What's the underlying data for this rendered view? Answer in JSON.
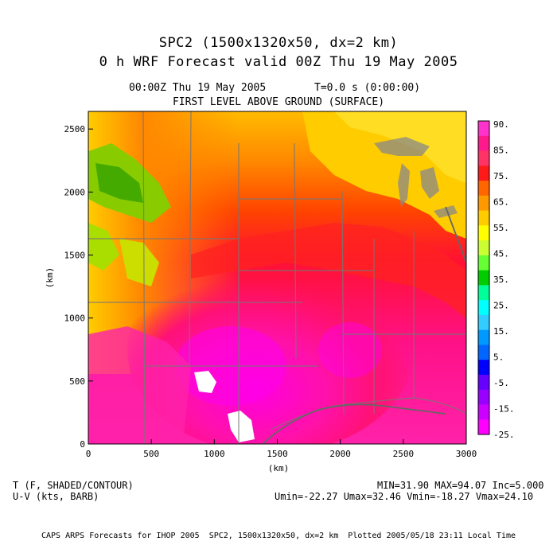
{
  "header": {
    "title_line1": "SPC2 (1500x1320x50, dx=2 km)",
    "title_line2": "0 h WRF Forecast valid 00Z Thu 19 May 2005",
    "time_stamp": "00:00Z Thu 19 May 2005",
    "model_time": "T=0.0 s (0:00:00)",
    "level": "FIRST LEVEL ABOVE GROUND (SURFACE)"
  },
  "footer": {
    "field1": "T (F, SHADED/CONTOUR)",
    "field2": "U-V (kts, BARB)",
    "stats1": "MIN=31.90 MAX=94.07 Inc=5.000",
    "stats2": "Umin=-22.27 Umax=32.46 Vmin=-18.27 Vmax=24.10",
    "credit": "CAPS ARPS Forecasts for IHOP 2005  SPC2, 1500x1320x50, dx=2 km  Plotted 2005/05/18 23:11 Local Time"
  },
  "chart_data": {
    "type": "heatmap",
    "title": "SPC2 (1500x1320x50, dx=2 km)",
    "xlabel": "(km)",
    "ylabel": "(km)",
    "xlim": [
      0,
      3000
    ],
    "ylim": [
      0,
      2640
    ],
    "x_ticks": [
      "0",
      "500",
      "1000",
      "1500",
      "2000",
      "2500",
      "3000"
    ],
    "y_ticks": [
      "0",
      "500",
      "1000",
      "1500",
      "2000",
      "2500"
    ],
    "x_tick_values": [
      0,
      500,
      1000,
      1500,
      2000,
      2500,
      3000
    ],
    "y_tick_values": [
      0,
      500,
      1000,
      1500,
      2000,
      2500
    ],
    "colorbar": {
      "labels": [
        "90.",
        "85.",
        "75.",
        "65.",
        "55.",
        "45.",
        "35.",
        "25.",
        "15.",
        "5.",
        "-5.",
        "-15.",
        "-25."
      ],
      "colors": [
        "#ff33cc",
        "#ff1a8c",
        "#ff3366",
        "#ff1a1a",
        "#ff6600",
        "#ff9900",
        "#ffcc00",
        "#ffff00",
        "#ccff33",
        "#66ff33",
        "#00cc00",
        "#00ff99",
        "#00ffff",
        "#33ccff",
        "#0099ff",
        "#0066ff",
        "#0000ff",
        "#6600ff",
        "#9900ff",
        "#cc00ff",
        "#ff00ff"
      ],
      "min": -25,
      "max": 90
    },
    "field": "T (F)",
    "min": 31.9,
    "max": 94.07,
    "contour_interval": 5.0
  }
}
